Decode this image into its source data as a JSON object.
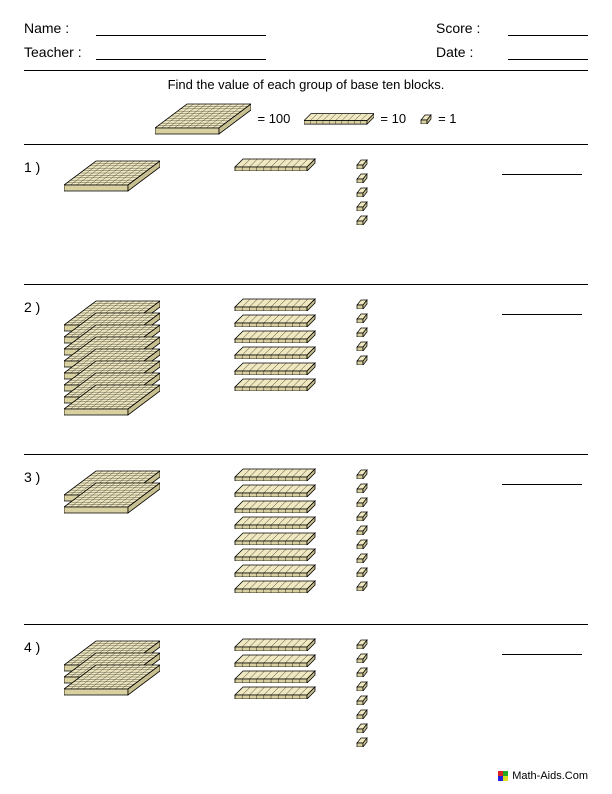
{
  "header": {
    "name_label": "Name :",
    "teacher_label": "Teacher :",
    "score_label": "Score :",
    "date_label": "Date :"
  },
  "instruction": "Find the value of each group of base ten blocks.",
  "legend": {
    "hundred_label": "= 100",
    "ten_label": "= 10",
    "one_label": "= 1"
  },
  "colors": {
    "block_fill": "#f0e8c0",
    "block_stroke": "#000000",
    "page_bg": "#ffffff"
  },
  "problems": [
    {
      "num": "1 )",
      "hundreds": 1,
      "tens": 1,
      "ones": 5,
      "size": "med"
    },
    {
      "num": "2 )",
      "hundreds": 8,
      "tens": 6,
      "ones": 5,
      "size": "tall"
    },
    {
      "num": "3 )",
      "hundreds": 2,
      "tens": 8,
      "ones": 9,
      "size": "tall"
    },
    {
      "num": "4 )",
      "hundreds": 3,
      "tens": 4,
      "ones": 8,
      "size": "tall"
    }
  ],
  "footer": "Math-Aids.Com"
}
